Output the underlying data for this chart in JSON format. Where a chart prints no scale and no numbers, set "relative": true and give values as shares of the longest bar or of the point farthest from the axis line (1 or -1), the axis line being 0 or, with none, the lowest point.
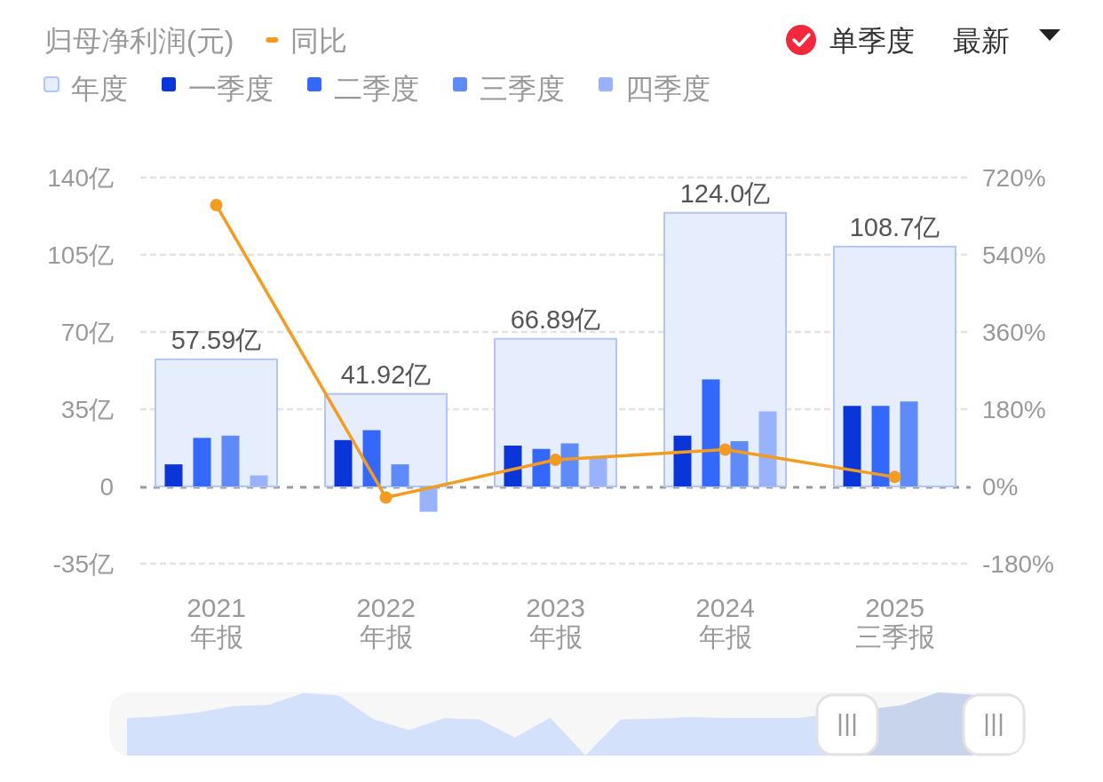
{
  "chart_data": [
    {
      "type": "bar",
      "title": "归母净利润(元)",
      "categories": [
        "2021\n年报",
        "2022\n年报",
        "2023\n年报",
        "2024\n年报",
        "2025\n三季报"
      ],
      "series": [
        {
          "name": "年度",
          "type": "bar",
          "color": "#e6edfd",
          "values": [
            57.59,
            41.92,
            66.89,
            124.0,
            108.7
          ],
          "value_labels": [
            "57.59亿",
            "41.92亿",
            "66.89亿",
            "124.0亿",
            "108.7亿"
          ]
        },
        {
          "name": "一季度",
          "type": "bar",
          "color": "#0a36d9",
          "values": [
            10,
            21,
            18.5,
            23,
            36.5
          ]
        },
        {
          "name": "二季度",
          "type": "bar",
          "color": "#3467fb",
          "values": [
            22,
            25.5,
            17,
            48.5,
            36.5
          ]
        },
        {
          "name": "三季度",
          "type": "bar",
          "color": "#5f8afa",
          "values": [
            23,
            10,
            19.5,
            20.5,
            38.5
          ]
        },
        {
          "name": "四季度",
          "type": "bar",
          "color": "#98b2fb",
          "values": [
            5,
            -11.5,
            13,
            34,
            null
          ]
        },
        {
          "name": "同比",
          "type": "line",
          "axis": "y2",
          "color": "#f39c1f",
          "values": [
            656,
            -26,
            62,
            86,
            22
          ]
        }
      ],
      "ylim": [
        -35,
        140
      ],
      "yticks": [
        {
          "value": -35,
          "label": "-35亿"
        },
        0,
        {
          "value": 35,
          "label": "35亿"
        },
        {
          "value": 70,
          "label": "70亿"
        },
        {
          "value": 105,
          "label": "105亿"
        },
        {
          "value": 140,
          "label": "140亿"
        }
      ],
      "y2lim": [
        -180,
        720
      ],
      "y2ticks": [
        {
          "value": -180,
          "label": "-180%"
        },
        {
          "value": 0,
          "label": "0%"
        },
        {
          "value": 180,
          "label": "180%"
        },
        {
          "value": 360,
          "label": "360%"
        },
        {
          "value": 540,
          "label": "540%"
        },
        {
          "value": 720,
          "label": "720%"
        }
      ],
      "ref_lines": [
        {
          "axis": "y",
          "value": 0,
          "color": "#999999",
          "line_style": "dashed"
        }
      ],
      "grid": "y",
      "legend": "top left",
      "marker": "circle",
      "line_style": "solid",
      "annotations": [
        "单季度",
        "最新"
      ]
    },
    {
      "type": "area",
      "relative": true,
      "categories": [
        null,
        null,
        null,
        null,
        null,
        null,
        null,
        null,
        null,
        null,
        null,
        null,
        null,
        null,
        null,
        null,
        null,
        null,
        null,
        null,
        null,
        null,
        null,
        null,
        null
      ],
      "color": "#d4e1fa",
      "values": [
        0.59,
        0.62,
        0.68,
        0.78,
        0.8,
        0.99,
        0.95,
        0.57,
        0.4,
        0.59,
        0.57,
        0.28,
        0.6,
        0,
        0.57,
        0.58,
        0.61,
        0.59,
        0.59,
        0.59,
        null,
        null,
        0.8,
        1,
        0.96
      ]
    }
  ]
}
